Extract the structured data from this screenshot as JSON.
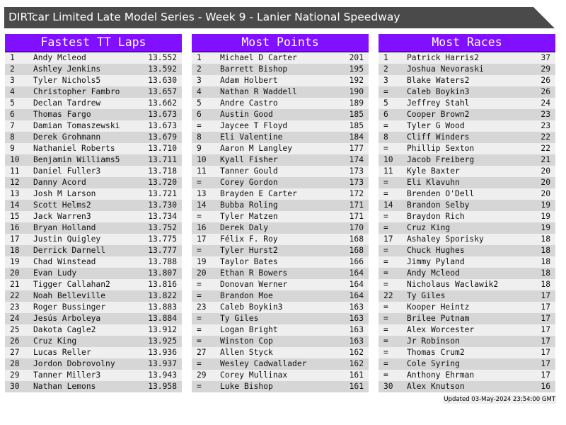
{
  "title": "DIRTcar Limited Late Model Series - Week 9 - Lanier National Speedway",
  "colors": {
    "header_bg": "#8010ff",
    "title_bg": "#4a4a4a",
    "row_light": "#efefef",
    "row_dark": "#d6d6d6"
  },
  "panels": [
    {
      "title": "Fastest TT Laps",
      "rows": [
        [
          "1",
          "Andy Mcleod",
          "13.552"
        ],
        [
          "2",
          "Ashley Jenkins",
          "13.592"
        ],
        [
          "3",
          "Tyler Nichols5",
          "13.630"
        ],
        [
          "4",
          "Christopher Fambro",
          "13.657"
        ],
        [
          "5",
          "Declan Tardrew",
          "13.662"
        ],
        [
          "6",
          "Thomas Fargo",
          "13.673"
        ],
        [
          "7",
          "Damian Tomaszewski",
          "13.673"
        ],
        [
          "8",
          "Derek Grohmann",
          "13.679"
        ],
        [
          "9",
          "Nathaniel Roberts",
          "13.710"
        ],
        [
          "10",
          "Benjamin Williams5",
          "13.711"
        ],
        [
          "11",
          "Daniel Fuller3",
          "13.718"
        ],
        [
          "12",
          "Danny Acord",
          "13.720"
        ],
        [
          "13",
          "Josh M Larson",
          "13.721"
        ],
        [
          "14",
          "Scott Helms2",
          "13.730"
        ],
        [
          "15",
          "Jack Warren3",
          "13.734"
        ],
        [
          "16",
          "Bryan Holland",
          "13.752"
        ],
        [
          "17",
          "Justin Quigley",
          "13.775"
        ],
        [
          "18",
          "Derrick Darnell",
          "13.777"
        ],
        [
          "19",
          "Chad Winstead",
          "13.788"
        ],
        [
          "20",
          "Evan Ludy",
          "13.807"
        ],
        [
          "21",
          "Tigger Callahan2",
          "13.816"
        ],
        [
          "22",
          "Noah Belleville",
          "13.822"
        ],
        [
          "23",
          "Roger Bussinger",
          "13.883"
        ],
        [
          "24",
          "Jesús Arboleya",
          "13.884"
        ],
        [
          "25",
          "Dakota Cagle2",
          "13.912"
        ],
        [
          "26",
          "Cruz King",
          "13.925"
        ],
        [
          "27",
          "Lucas Reller",
          "13.936"
        ],
        [
          "28",
          "Jordon Dobrovolny",
          "13.937"
        ],
        [
          "29",
          "Tanner Miller3",
          "13.943"
        ],
        [
          "30",
          "Nathan Lemons",
          "13.958"
        ]
      ]
    },
    {
      "title": "Most Points",
      "rows": [
        [
          "1",
          "Michael D Carter",
          "201"
        ],
        [
          "2",
          "Barrett Bishop",
          "195"
        ],
        [
          "3",
          "Adam Holbert",
          "192"
        ],
        [
          "4",
          "Nathan R Waddell",
          "190"
        ],
        [
          "5",
          "Andre Castro",
          "189"
        ],
        [
          "6",
          "Austin Good",
          "185"
        ],
        [
          "=",
          "Jaycee T Floyd",
          "185"
        ],
        [
          "8",
          "Eli Valentine",
          "184"
        ],
        [
          "9",
          "Aaron M Langley",
          "177"
        ],
        [
          "10",
          "Kyall Fisher",
          "174"
        ],
        [
          "11",
          "Tanner Gould",
          "173"
        ],
        [
          "=",
          "Corey Gordon",
          "173"
        ],
        [
          "13",
          "Brayden E Carter",
          "172"
        ],
        [
          "14",
          "Bubba Roling",
          "171"
        ],
        [
          "=",
          "Tyler Matzen",
          "171"
        ],
        [
          "16",
          "Derek Daly",
          "170"
        ],
        [
          "17",
          "Félix F. Roy",
          "168"
        ],
        [
          "=",
          "Tyler Hurst2",
          "168"
        ],
        [
          "19",
          "Taylor Bates",
          "166"
        ],
        [
          "20",
          "Ethan R Bowers",
          "164"
        ],
        [
          "=",
          "Donovan Werner",
          "164"
        ],
        [
          "=",
          "Brandon Moe",
          "164"
        ],
        [
          "23",
          "Caleb Boykin3",
          "163"
        ],
        [
          "=",
          "Ty Giles",
          "163"
        ],
        [
          "=",
          "Logan Bright",
          "163"
        ],
        [
          "=",
          "Winston Cop",
          "163"
        ],
        [
          "27",
          "Allen Styck",
          "162"
        ],
        [
          "=",
          "Wesley Cadwallader",
          "162"
        ],
        [
          "29",
          "Corey Mullinax",
          "161"
        ],
        [
          "=",
          "Luke Bishop",
          "161"
        ]
      ]
    },
    {
      "title": "Most Races",
      "rows": [
        [
          "1",
          "Patrick Harris2",
          "37"
        ],
        [
          "2",
          "Joshua Nevoraski",
          "29"
        ],
        [
          "3",
          "Blake Waters2",
          "26"
        ],
        [
          "=",
          "Caleb Boykin3",
          "26"
        ],
        [
          "5",
          "Jeffrey Stahl",
          "24"
        ],
        [
          "6",
          "Cooper Brown2",
          "23"
        ],
        [
          "=",
          "Tyler G Wood",
          "23"
        ],
        [
          "8",
          "Cliff Winders",
          "22"
        ],
        [
          "=",
          "Phillip Sexton",
          "22"
        ],
        [
          "10",
          "Jacob Freiberg",
          "21"
        ],
        [
          "11",
          "Kyle Baxter",
          "20"
        ],
        [
          "=",
          "Eli Klavuhn",
          "20"
        ],
        [
          "=",
          "Brenden O'Dell",
          "20"
        ],
        [
          "14",
          "Brandon Selby",
          "19"
        ],
        [
          "=",
          "Braydon Rich",
          "19"
        ],
        [
          "=",
          "Cruz King",
          "19"
        ],
        [
          "17",
          "Ashaley Sporisky",
          "18"
        ],
        [
          "=",
          "Chuck Hughes",
          "18"
        ],
        [
          "=",
          "Jimmy Pyland",
          "18"
        ],
        [
          "=",
          "Andy Mcleod",
          "18"
        ],
        [
          "=",
          "Nicholaus Waclawik2",
          "18"
        ],
        [
          "22",
          "Ty Giles",
          "17"
        ],
        [
          "=",
          "Kooper Heintz",
          "17"
        ],
        [
          "=",
          "Brilee Putnam",
          "17"
        ],
        [
          "=",
          "Alex Worcester",
          "17"
        ],
        [
          "=",
          "Jr Robinson",
          "17"
        ],
        [
          "=",
          "Thomas Crum2",
          "17"
        ],
        [
          "=",
          "Cole Syring",
          "17"
        ],
        [
          "=",
          "Anthony Ehrman",
          "17"
        ],
        [
          "30",
          "Alex Knutson",
          "16"
        ]
      ]
    }
  ],
  "footer": "Updated 03-May-2024 23:54:00 GMT"
}
